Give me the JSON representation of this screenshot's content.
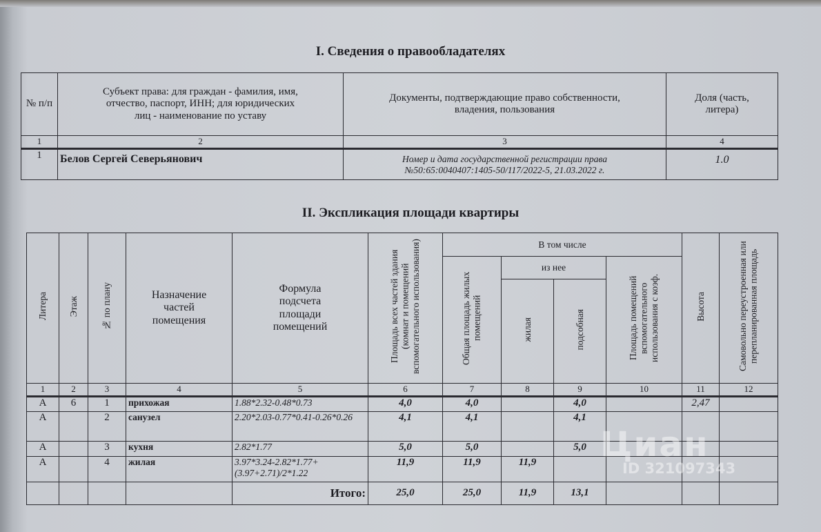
{
  "section1": {
    "title": "I. Сведения о правообладателях",
    "headers": [
      "№ п/п",
      "Субъект права: для граждан - фамилия, имя, отчество, паспорт, ИНН; для юридических лиц - наименование по уставу",
      "Документы, подтверждающие право собственности, владения, пользования",
      "Доля (часть, литера)"
    ],
    "numbers": [
      "1",
      "2",
      "3",
      "4"
    ],
    "row": {
      "num": "1",
      "owner": "Белов Сергей Северьянович",
      "doc_line1": "Номер и дата государственной регистрации права",
      "doc_line2": "№50:65:0040407:1405-50/117/2022-5, 21.03.2022 г.",
      "share": "1.0"
    }
  },
  "section2": {
    "title": "II. Экспликация площади квартиры",
    "headers": {
      "litera": "Литера",
      "floor": "Этаж",
      "plan_no": "№ по плану",
      "purpose": "Назначение частей помещения",
      "formula": "Формула подсчета площади помещений",
      "total_area": "Площадь всех частей здания (комнат и помещений вспомогательного использования)",
      "including": "В том числе",
      "living_total": "Общая площадь жилых помещений",
      "of_which": "из нее",
      "living": "жилая",
      "auxiliary": "подсобная",
      "aux_coef": "Площадь помещений вспомогательного использования с коэф.",
      "height": "Высота",
      "rebuilt": "Самовольно переустроенная или перепланированная площадь"
    },
    "numbers": [
      "1",
      "2",
      "3",
      "4",
      "5",
      "6",
      "7",
      "8",
      "9",
      "10",
      "11",
      "12"
    ],
    "rows": [
      {
        "litera": "А",
        "floor": "6",
        "plan": "1",
        "purpose": "прихожая",
        "formula": "1.88*2.32-0.48*0.73",
        "total": "4,0",
        "living_total": "4,0",
        "living": "",
        "aux": "4,0",
        "coef": "",
        "height": "2,47",
        "rebuilt": ""
      },
      {
        "litera": "А",
        "floor": "",
        "plan": "2",
        "purpose": "санузел",
        "formula": "2.20*2.03-0.77*0.41-0.26*0.26",
        "total": "4,1",
        "living_total": "4,1",
        "living": "",
        "aux": "4,1",
        "coef": "",
        "height": "",
        "rebuilt": ""
      },
      {
        "litera": "А",
        "floor": "",
        "plan": "3",
        "purpose": "кухня",
        "formula": "2.82*1.77",
        "total": "5,0",
        "living_total": "5,0",
        "living": "",
        "aux": "5,0",
        "coef": "",
        "height": "",
        "rebuilt": ""
      },
      {
        "litera": "А",
        "floor": "",
        "plan": "4",
        "purpose": "жилая",
        "formula": "3.97*3.24-2.82*1.77+(3.97+2.71)/2*1.22",
        "total": "11,9",
        "living_total": "11,9",
        "living": "11,9",
        "aux": "",
        "coef": "",
        "height": "",
        "rebuilt": ""
      }
    ],
    "totals": {
      "label": "Итого:",
      "total": "25,0",
      "living_total": "25,0",
      "living": "11,9",
      "aux": "13,1"
    }
  },
  "watermark": {
    "brand": "Циан",
    "id": "ID 321097343"
  }
}
